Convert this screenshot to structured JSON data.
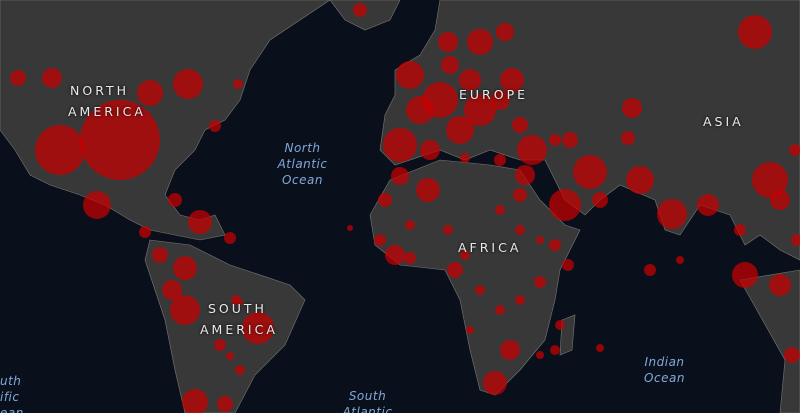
{
  "map": {
    "continent_labels": {
      "north_america": [
        "NORTH",
        "AMERICA"
      ],
      "south_america": [
        "SOUTH",
        "AMERICA"
      ],
      "europe": "EUROPE",
      "africa": "AFRICA",
      "asia": "ASIA"
    },
    "ocean_labels": {
      "north_atlantic": [
        "North",
        "Atlantic",
        "Ocean"
      ],
      "south_atlantic": [
        "South",
        "Atlantic"
      ],
      "indian": [
        "Indian",
        "Ocean"
      ],
      "south_pacific_partial": [
        "uth",
        "ific",
        "ean"
      ]
    },
    "colors": {
      "ocean": "#0a101b",
      "land": "#383838",
      "borders": "#777777",
      "markers": "#c80000"
    }
  }
}
